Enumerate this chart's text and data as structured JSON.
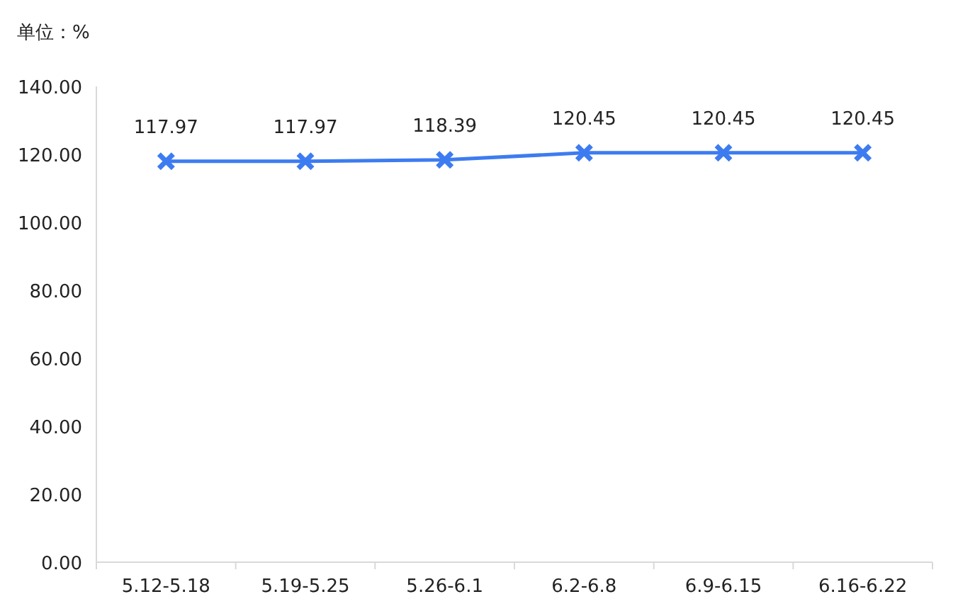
{
  "chart_data": {
    "type": "line",
    "ylabel": "单位：%",
    "categories": [
      "5.12-5.18",
      "5.19-5.25",
      "5.26-6.1",
      "6.2-6.8",
      "6.9-6.15",
      "6.16-6.22"
    ],
    "values": [
      117.97,
      117.97,
      118.39,
      120.45,
      120.45,
      120.45
    ],
    "color": "#3d7cf0",
    "marker": "cross",
    "data_labels": true,
    "ylim": [
      0,
      140
    ],
    "yticks": [
      {
        "value": 0,
        "label": "0.00"
      },
      {
        "value": 20,
        "label": "20.00"
      },
      {
        "value": 40,
        "label": "40.00"
      },
      {
        "value": 60,
        "label": "60.00"
      },
      {
        "value": 80,
        "label": "80.00"
      },
      {
        "value": 100,
        "label": "100.00"
      },
      {
        "value": 120,
        "label": "120.00"
      },
      {
        "value": 140,
        "label": "140.00"
      }
    ]
  }
}
